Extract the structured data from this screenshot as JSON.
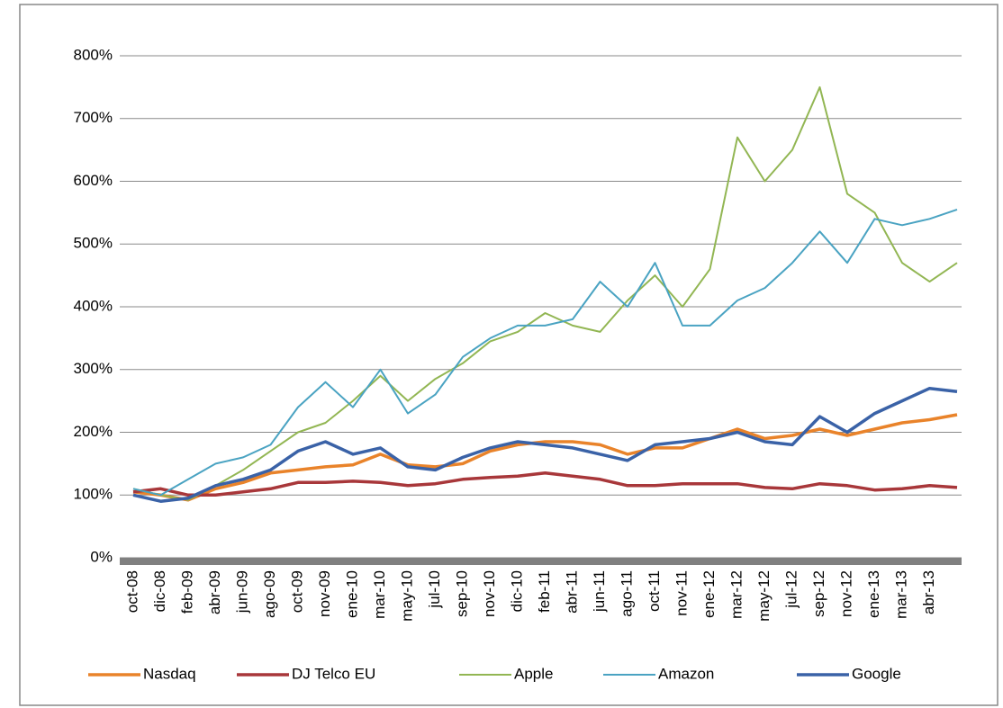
{
  "chart_data": {
    "type": "line",
    "categories": [
      "oct-08",
      "dic-08",
      "feb-09",
      "abr-09",
      "jun-09",
      "ago-09",
      "oct-09",
      "nov-09",
      "ene-10",
      "mar-10",
      "may-10",
      "jul-10",
      "sep-10",
      "nov-10",
      "dic-10",
      "feb-11",
      "abr-11",
      "jun-11",
      "ago-11",
      "oct-11",
      "nov-11",
      "ene-12",
      "mar-12",
      "may-12",
      "jul-12",
      "sep-12",
      "nov-12",
      "ene-13",
      "mar-13",
      "abr-13",
      null
    ],
    "series": [
      {
        "name": "Nasdaq",
        "color": "#e9832a",
        "line_width": 3.5,
        "values": [
          105,
          100,
          92,
          110,
          120,
          135,
          140,
          145,
          148,
          165,
          148,
          145,
          150,
          170,
          180,
          185,
          185,
          180,
          165,
          175,
          175,
          190,
          205,
          190,
          195,
          205,
          195,
          205,
          215,
          220,
          228
        ]
      },
      {
        "name": "DJ Telco EU",
        "color": "#a8373a",
        "line_width": 3.5,
        "values": [
          105,
          110,
          100,
          100,
          105,
          110,
          120,
          120,
          122,
          120,
          115,
          118,
          125,
          128,
          130,
          135,
          130,
          125,
          115,
          115,
          118,
          118,
          118,
          112,
          110,
          118,
          115,
          108,
          110,
          115,
          112
        ]
      },
      {
        "name": "Apple",
        "color": "#92b653",
        "line_width": 2,
        "values": [
          110,
          100,
          92,
          115,
          140,
          170,
          200,
          215,
          250,
          290,
          250,
          285,
          310,
          345,
          360,
          390,
          370,
          360,
          410,
          450,
          400,
          460,
          670,
          600,
          650,
          750,
          580,
          550,
          470,
          440,
          470
        ]
      },
      {
        "name": "Amazon",
        "color": "#4aa3c2",
        "line_width": 2,
        "values": [
          110,
          100,
          125,
          150,
          160,
          180,
          240,
          280,
          240,
          300,
          230,
          260,
          320,
          350,
          370,
          370,
          380,
          440,
          400,
          470,
          370,
          370,
          410,
          430,
          470,
          520,
          470,
          540,
          530,
          540,
          555
        ]
      },
      {
        "name": "Google",
        "color": "#3a62a7",
        "line_width": 3.5,
        "values": [
          100,
          90,
          95,
          115,
          125,
          140,
          170,
          185,
          165,
          175,
          145,
          140,
          160,
          175,
          185,
          180,
          175,
          165,
          155,
          180,
          185,
          190,
          200,
          185,
          180,
          225,
          200,
          230,
          250,
          270,
          265
        ]
      }
    ],
    "ylim": [
      0,
      800
    ],
    "yticks": [
      {
        "value": 0,
        "label": "0%"
      },
      {
        "value": 100,
        "label": "100%"
      },
      {
        "value": 200,
        "label": "200%"
      },
      {
        "value": 300,
        "label": "300%"
      },
      {
        "value": 400,
        "label": "400%"
      },
      {
        "value": 500,
        "label": "500%"
      },
      {
        "value": 600,
        "label": "600%"
      },
      {
        "value": 700,
        "label": "700%"
      },
      {
        "value": 800,
        "label": "800%"
      }
    ],
    "grid": true,
    "legend": "bottom"
  }
}
